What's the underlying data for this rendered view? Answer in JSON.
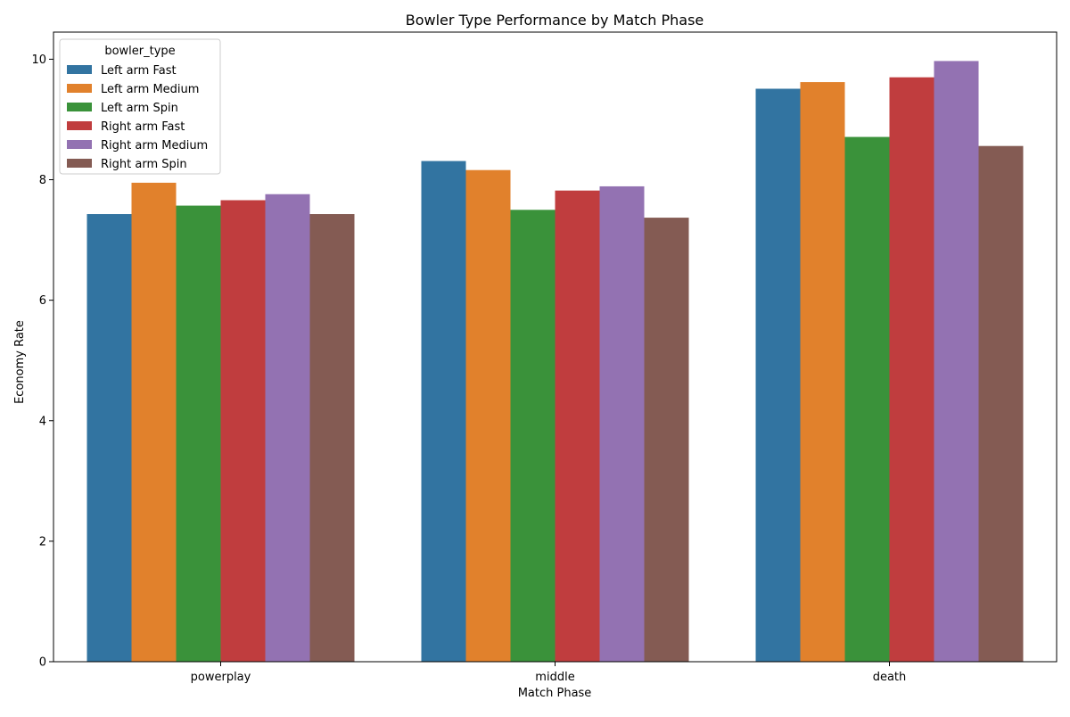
{
  "chart_data": {
    "type": "bar",
    "title": "Bowler Type Performance by Match Phase",
    "xlabel": "Match Phase",
    "ylabel": "Economy Rate",
    "categories": [
      "powerplay",
      "middle",
      "death"
    ],
    "ylim": [
      0,
      10.45
    ],
    "yticks": [
      0,
      2,
      4,
      6,
      8,
      10
    ],
    "grid": false,
    "legend": {
      "title": "bowler_type",
      "placement": "top-left"
    },
    "series": [
      {
        "name": "Left arm Fast",
        "color": "#3274a1",
        "values": [
          7.43,
          8.31,
          9.51
        ]
      },
      {
        "name": "Left arm Medium",
        "color": "#e1812c",
        "values": [
          7.95,
          8.16,
          9.62
        ]
      },
      {
        "name": "Left arm Spin",
        "color": "#3a923a",
        "values": [
          7.57,
          7.5,
          8.71
        ]
      },
      {
        "name": "Right arm Fast",
        "color": "#c03d3e",
        "values": [
          7.66,
          7.82,
          9.7
        ]
      },
      {
        "name": "Right arm Medium",
        "color": "#9372b2",
        "values": [
          7.76,
          7.89,
          9.97
        ]
      },
      {
        "name": "Right arm Spin",
        "color": "#845b53",
        "values": [
          7.43,
          7.37,
          8.56
        ]
      }
    ]
  }
}
